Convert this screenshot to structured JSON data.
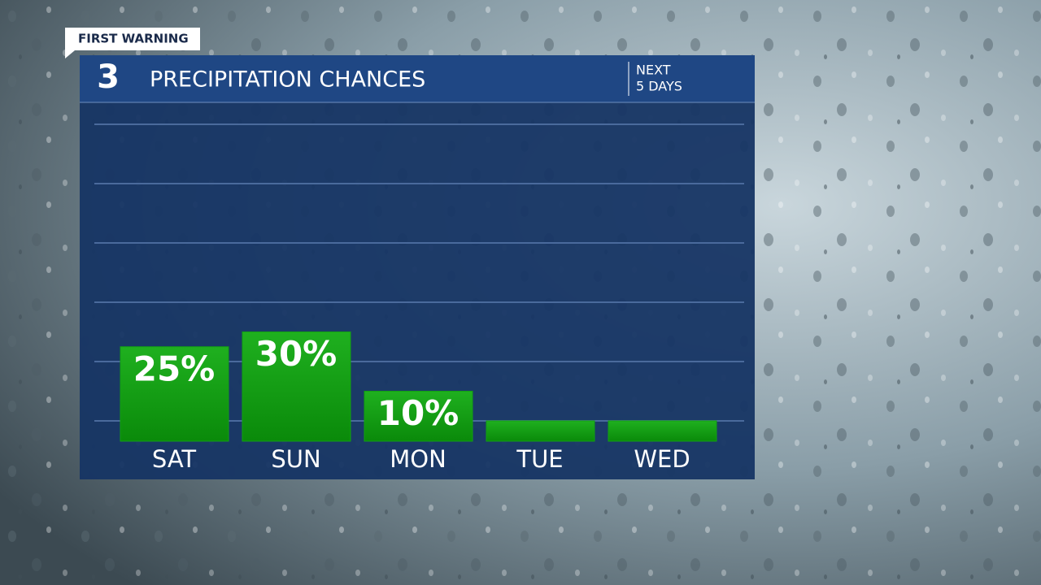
{
  "chart_data": {
    "type": "bar",
    "badge": "FIRST WARNING",
    "logo": "3",
    "title": "PRECIPITATION CHANCES",
    "subtitle": [
      "NEXT",
      "5 DAYS"
    ],
    "categories": [
      "SAT",
      "SUN",
      "MON",
      "TUE",
      "WED"
    ],
    "values": [
      25,
      30,
      10,
      0,
      0
    ],
    "value_labels": [
      "25%",
      "30%",
      "10%",
      null,
      null
    ],
    "color": "#12a012",
    "ylim": [
      0,
      100
    ],
    "yticks": [
      0,
      20,
      40,
      60,
      80,
      100
    ],
    "grid": true
  }
}
